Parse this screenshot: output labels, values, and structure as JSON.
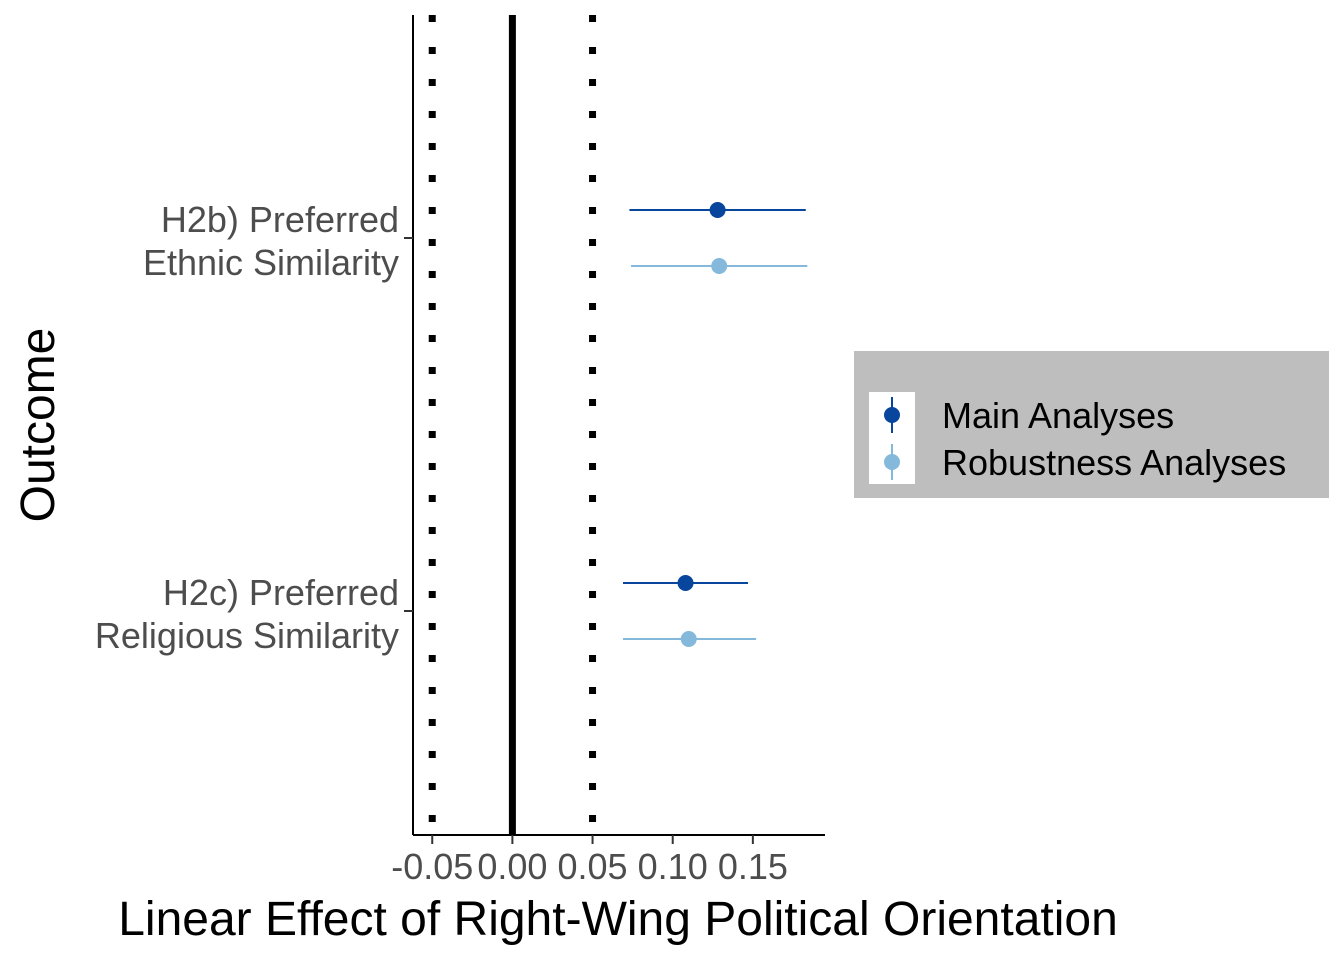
{
  "chart_data": {
    "type": "forest",
    "xlabel": "Linear Effect of Right-Wing Political Orientation",
    "ylabel": "Outcome",
    "xlim": [
      -0.062,
      0.195
    ],
    "x_ticks": [
      -0.05,
      0.0,
      0.05,
      0.1,
      0.15
    ],
    "x_tick_labels": [
      "-0.05",
      "0.00",
      "0.05",
      "0.10",
      "0.15"
    ],
    "reference_lines": [
      {
        "x": 0.0,
        "style": "solid"
      },
      {
        "x": -0.05,
        "style": "dotted"
      },
      {
        "x": 0.05,
        "style": "dotted"
      }
    ],
    "categories": [
      {
        "id": "h2b",
        "lines": [
          "H2b) Preferred",
          "Ethnic Similarity"
        ]
      },
      {
        "id": "h2c",
        "lines": [
          "H2c) Preferred",
          "Religious Similarity"
        ]
      }
    ],
    "series": [
      {
        "name": "Main Analyses",
        "color": "#08459c",
        "points": [
          {
            "category": "h2b",
            "estimate": 0.128,
            "lower": 0.073,
            "upper": 0.183
          },
          {
            "category": "h2c",
            "estimate": 0.108,
            "lower": 0.069,
            "upper": 0.147
          }
        ]
      },
      {
        "name": "Robustness Analyses",
        "color": "#84b9db",
        "points": [
          {
            "category": "h2b",
            "estimate": 0.129,
            "lower": 0.074,
            "upper": 0.184
          },
          {
            "category": "h2c",
            "estimate": 0.11,
            "lower": 0.069,
            "upper": 0.152
          }
        ]
      }
    ],
    "legend": {
      "position": "right",
      "background": "#bebebe"
    },
    "grid": false
  }
}
